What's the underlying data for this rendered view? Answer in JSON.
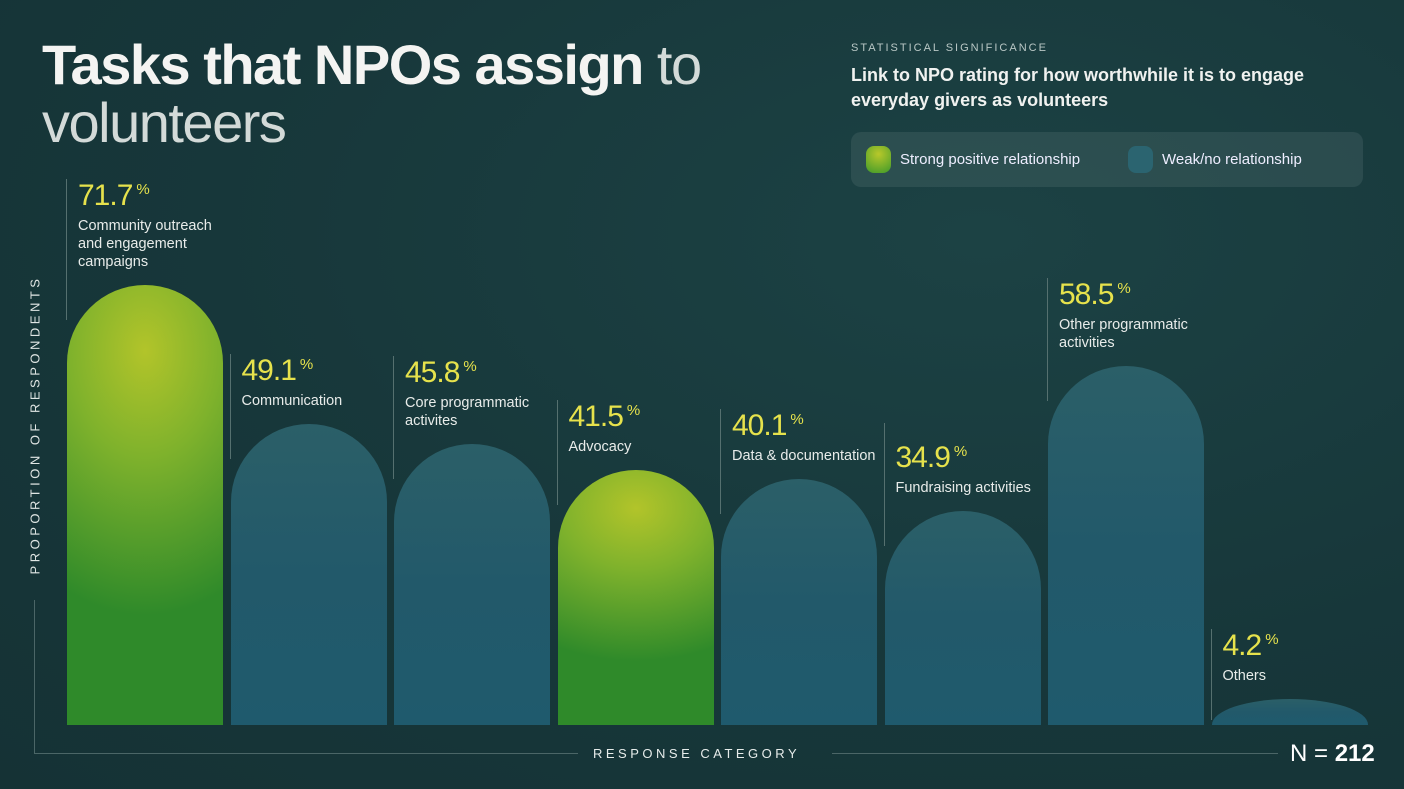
{
  "title": {
    "bold": "Tasks that NPOs assign",
    "light_1": "to",
    "light_2": "volunteers"
  },
  "significance": {
    "heading": "STATISTICAL SIGNIFICANCE",
    "subtitle": "Link to NPO rating for how worthwhile it is to engage everyday givers as volunteers",
    "legend": [
      {
        "label": "Strong positive relationship",
        "color": "#7fb22c"
      },
      {
        "label": "Weak/no relationship",
        "color": "#2b6470"
      }
    ]
  },
  "footer": {
    "n_label": "N",
    "n_eq": "=",
    "n_value": "212"
  },
  "chart_data": {
    "type": "bar",
    "ylabel": "PROPORTION OF RESPONDENTS",
    "xlabel": "RESPONSE CATEGORY",
    "unit": "%",
    "ylim": [
      0,
      100
    ],
    "grid": false,
    "legend_position": "top-right",
    "categories": [
      "Community outreach and engagement campaigns",
      "Communication",
      "Core programmatic activites",
      "Advocacy",
      "Data & documentation",
      "Fundraising activities",
      "Other programmatic activities",
      "Others"
    ],
    "values": [
      71.7,
      49.1,
      45.8,
      41.5,
      40.1,
      34.9,
      58.5,
      4.2
    ],
    "value_labels": [
      "71.7",
      "49.1",
      "45.8",
      "41.5",
      "40.1",
      "34.9",
      "58.5",
      "4.2"
    ],
    "significance": [
      "strong",
      "weak",
      "weak",
      "strong",
      "weak",
      "weak",
      "weak",
      "weak"
    ]
  }
}
